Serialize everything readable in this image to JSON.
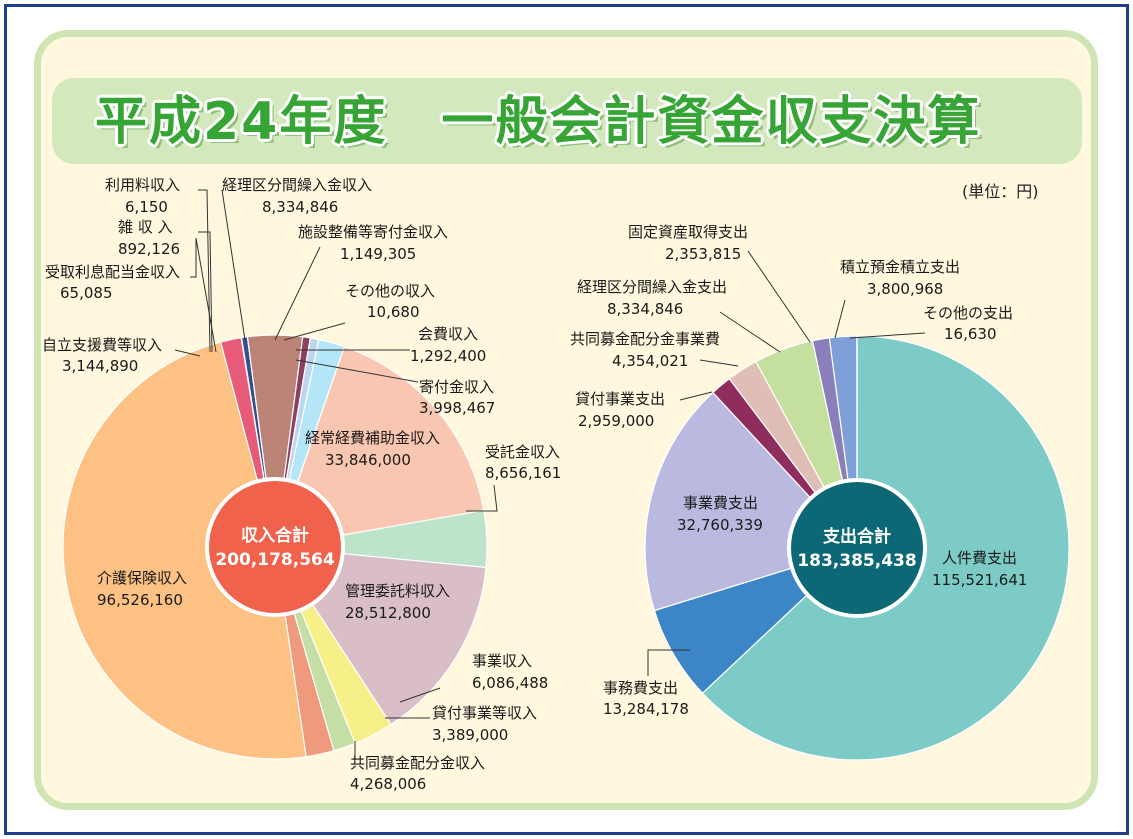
{
  "title": "平成24年度　一般会計資金収支決算",
  "unit": "(単位：円)",
  "chart_data": [
    {
      "type": "pie",
      "total_label": "収入合計",
      "total_value": "200,178,564",
      "slices": [
        {
          "name": "受託金収入",
          "label": "受託金収入",
          "value_text": "8,656,161",
          "value": 8656161,
          "color": "#bde3cb"
        },
        {
          "name": "管理委託料収入",
          "label": "管理委託料収入",
          "value_text": "28,512,800",
          "value": 28512800,
          "color": "#d9bec7"
        },
        {
          "name": "事業収入",
          "label": "事業収入",
          "value_text": "6,086,488",
          "value": 6086488,
          "color": "#f7ef88"
        },
        {
          "name": "貸付事業等収入",
          "label": "貸付事業等収入",
          "value_text": "3,389,000",
          "value": 3389000,
          "color": "#c5dea6"
        },
        {
          "name": "共同募金配分金収入",
          "label": "共同募金配分金収入",
          "value_text": "4,268,006",
          "value": 4268006,
          "color": "#ef9a7d"
        },
        {
          "name": "介護保険収入",
          "label": "介護保険収入",
          "value_text": "96,526,160",
          "value": 96526160,
          "color": "#fdc283"
        },
        {
          "name": "自立支援費等収入",
          "label": "自立支援費等収入",
          "value_text": "3,144,890",
          "value": 3144890,
          "color": "#e85b78"
        },
        {
          "name": "受取利息配当金収入",
          "label": "受取利息配当金収入",
          "value_text": "65,085",
          "value": 65085,
          "color": "#4a2a3a"
        },
        {
          "name": "雑収入",
          "label": "雑 収 入",
          "value_text": "892,126",
          "value": 892126,
          "color": "#364f8a"
        },
        {
          "name": "利用料収入",
          "label": "利用料収入",
          "value_text": "6,150",
          "value": 6150,
          "color": "#333333"
        },
        {
          "name": "経理区分間繰入金収入",
          "label": "経理区分間繰入金収入",
          "value_text": "8,334,846",
          "value": 8334846,
          "color": "#bb8476"
        },
        {
          "name": "施設整備等寄付金収入",
          "label": "施設整備等寄付金収入",
          "value_text": "1,149,305",
          "value": 1149305,
          "color": "#8c3f5e"
        },
        {
          "name": "その他の収入",
          "label": "その他の収入",
          "value_text": "10,680",
          "value": 10680,
          "color": "#4d6fa8"
        },
        {
          "name": "会費収入",
          "label": "会費収入",
          "value_text": "1,292,400",
          "value": 1292400,
          "color": "#bcd6f2"
        },
        {
          "name": "寄付金収入",
          "label": "寄付金収入",
          "value_text": "3,998,467",
          "value": 3998467,
          "color": "#b5e6f7"
        },
        {
          "name": "経常経費補助金収入",
          "label": "経常経費補助金収入",
          "value_text": "33,846,000",
          "value": 33846000,
          "color": "#f9c7b1"
        }
      ]
    },
    {
      "type": "pie",
      "total_label": "支出合計",
      "total_value": "183,385,438",
      "slices": [
        {
          "name": "人件費支出",
          "label": "人件費支出",
          "value_text": "115,521,641",
          "value": 115521641,
          "color": "#7ccbc7"
        },
        {
          "name": "事務費支出",
          "label": "事務費支出",
          "value_text": "13,284,178",
          "value": 13284178,
          "color": "#3c86c8"
        },
        {
          "name": "事業費支出",
          "label": "事業費支出",
          "value_text": "32,760,339",
          "value": 32760339,
          "color": "#bab9df"
        },
        {
          "name": "貸付事業支出",
          "label": "貸付事業支出",
          "value_text": "2,959,000",
          "value": 2959000,
          "color": "#8f2d5d"
        },
        {
          "name": "共同募金配分金事業費",
          "label": "共同募金配分金事業費",
          "value_text": "4,354,021",
          "value": 4354021,
          "color": "#dfbfb5"
        },
        {
          "name": "経理区分間繰入金支出",
          "label": "経理区分間繰入金支出",
          "value_text": "8,334,846",
          "value": 8334846,
          "color": "#c5df9e"
        },
        {
          "name": "固定資産取得支出",
          "label": "固定資産取得支出",
          "value_text": "2,353,815",
          "value": 2353815,
          "color": "#8a7fba"
        },
        {
          "name": "積立預金積立支出",
          "label": "積立預金積立支出",
          "value_text": "3,800,968",
          "value": 3800968,
          "color": "#7f9fd8"
        },
        {
          "name": "その他の支出",
          "label": "その他の支出",
          "value_text": "16,630",
          "value": 16630,
          "color": "#3b5a9a"
        }
      ]
    }
  ]
}
